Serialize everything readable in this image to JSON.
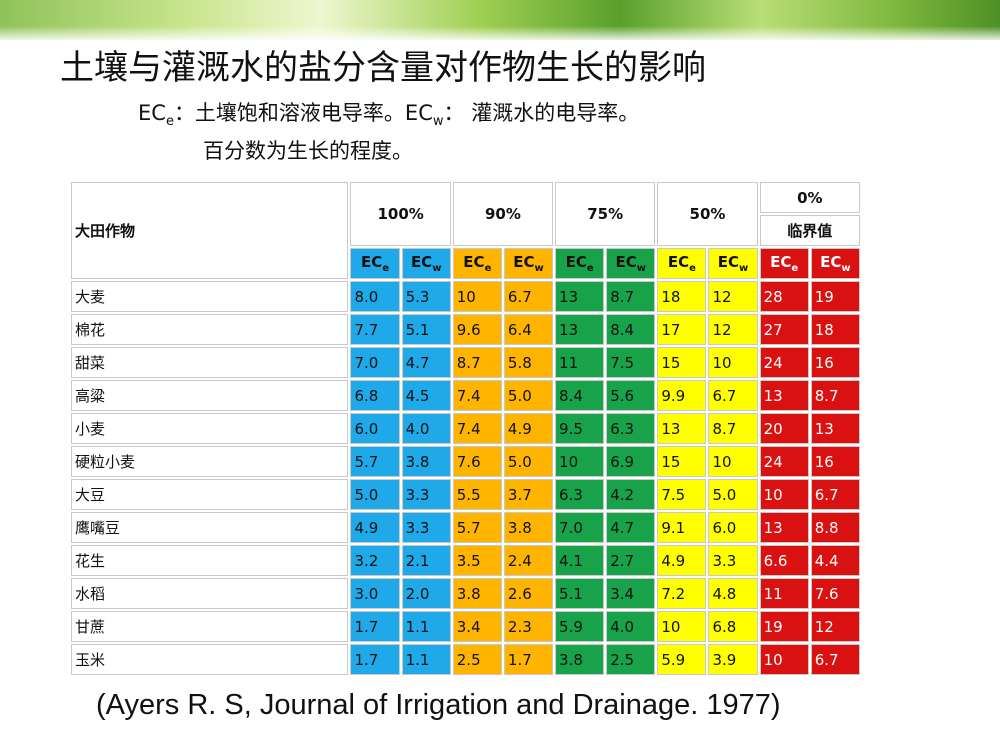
{
  "slide": {
    "title": "土壤与灌溉水的盐分含量对作物生长的影响",
    "note_line1_prefix": "EC",
    "note_line1_sub_e": "e",
    "note_line1_mid": "：土壤饱和溶液电导率。EC",
    "note_line1_sub_w": "w",
    "note_line1_suffix": "：  灌溉水的电导率。",
    "note_line2": "百分数为生长的程度。",
    "footer": "(Ayers R. S,  Journal of  Irrigation and Drainage. 1977)"
  },
  "table": {
    "crop_header": "大田作物",
    "groups": [
      "100%",
      "90%",
      "75%",
      "50%",
      "0%"
    ],
    "threshold_label": "临界值",
    "ec_e": "EC",
    "ec_e_sub": "e",
    "ec_w": "EC",
    "ec_w_sub": "w",
    "colors": {
      "100%": "#1fa9e8",
      "90%": "#ffb400",
      "75%": "#18a34a",
      "50%": "#ffff00",
      "0%": "#d91111"
    },
    "rows": [
      {
        "crop": "大麦",
        "v": [
          "8.0",
          "5.3",
          "10",
          "6.7",
          "13",
          "8.7",
          "18",
          "12",
          "28",
          "19"
        ]
      },
      {
        "crop": "棉花",
        "v": [
          "7.7",
          "5.1",
          "9.6",
          "6.4",
          "13",
          "8.4",
          "17",
          "12",
          "27",
          "18"
        ]
      },
      {
        "crop": "甜菜",
        "v": [
          "7.0",
          "4.7",
          "8.7",
          "5.8",
          "11",
          "7.5",
          "15",
          "10",
          "24",
          "16"
        ]
      },
      {
        "crop": "高粱",
        "v": [
          "6.8",
          "4.5",
          "7.4",
          "5.0",
          "8.4",
          "5.6",
          "9.9",
          "6.7",
          "13",
          "8.7"
        ]
      },
      {
        "crop": "小麦",
        "v": [
          "6.0",
          "4.0",
          "7.4",
          "4.9",
          "9.5",
          "6.3",
          "13",
          "8.7",
          "20",
          "13"
        ]
      },
      {
        "crop": "硬粒小麦",
        "v": [
          "5.7",
          "3.8",
          "7.6",
          "5.0",
          "10",
          "6.9",
          "15",
          "10",
          "24",
          "16"
        ]
      },
      {
        "crop": "大豆",
        "v": [
          "5.0",
          "3.3",
          "5.5",
          "3.7",
          "6.3",
          "4.2",
          "7.5",
          "5.0",
          "10",
          "6.7"
        ]
      },
      {
        "crop": "鹰嘴豆",
        "v": [
          "4.9",
          "3.3",
          "5.7",
          "3.8",
          "7.0",
          "4.7",
          "9.1",
          "6.0",
          "13",
          "8.8"
        ]
      },
      {
        "crop": "花生",
        "v": [
          "3.2",
          "2.1",
          "3.5",
          "2.4",
          "4.1",
          "2.7",
          "4.9",
          "3.3",
          "6.6",
          "4.4"
        ]
      },
      {
        "crop": "水稻",
        "v": [
          "3.0",
          "2.0",
          "3.8",
          "2.6",
          "5.1",
          "3.4",
          "7.2",
          "4.8",
          "11",
          "7.6"
        ]
      },
      {
        "crop": "甘蔗",
        "v": [
          "1.7",
          "1.1",
          "3.4",
          "2.3",
          "5.9",
          "4.0",
          "10",
          "6.8",
          "19",
          "12"
        ]
      },
      {
        "crop": "玉米",
        "v": [
          "1.7",
          "1.1",
          "2.5",
          "1.7",
          "3.8",
          "2.5",
          "5.9",
          "3.9",
          "10",
          "6.7"
        ]
      }
    ]
  }
}
